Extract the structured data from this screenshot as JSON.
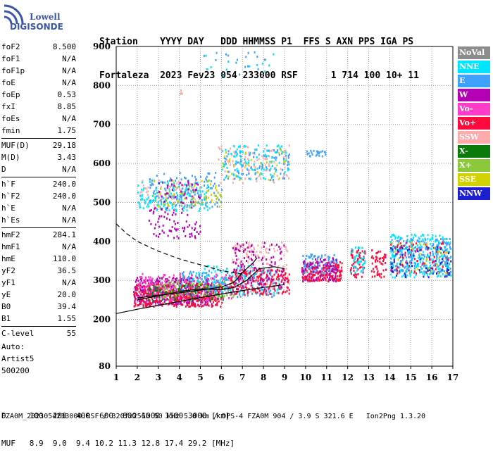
{
  "logo": {
    "line1": "Lowell",
    "line2": "DIGISONDE"
  },
  "header": {
    "labels": "Station    YYYY DAY   DDD HHMMSS P1  FFS S AXN PPS IGA PS",
    "values": "Fortaleza  2023 Fev23 054 233000 RSF      1 714 100 10+ 11"
  },
  "params": [
    {
      "groups": [
        {
          "name": "foF2",
          "value": "8.500"
        },
        {
          "name": "foF1",
          "value": "N/A"
        },
        {
          "name": "foF1p",
          "value": "N/A"
        },
        {
          "name": "foE",
          "value": "N/A"
        },
        {
          "name": "foEp",
          "value": "0.53"
        },
        {
          "name": "fxI",
          "value": "8.85"
        },
        {
          "name": "foEs",
          "value": "N/A"
        },
        {
          "name": "fmin",
          "value": "1.75"
        }
      ]
    },
    {
      "groups": [
        {
          "name": "MUF(D)",
          "value": "29.18"
        },
        {
          "name": "M(D)",
          "value": "3.43"
        },
        {
          "name": "D",
          "value": "N/A"
        }
      ]
    },
    {
      "groups": [
        {
          "name": "h`F",
          "value": "240.0"
        },
        {
          "name": "h`F2",
          "value": "240.0"
        },
        {
          "name": "h`E",
          "value": "N/A"
        },
        {
          "name": "h`Es",
          "value": "N/A"
        }
      ]
    },
    {
      "groups": [
        {
          "name": "hmF2",
          "value": "284.1"
        },
        {
          "name": "hmF1",
          "value": "N/A"
        },
        {
          "name": "hmE",
          "value": "110.0"
        },
        {
          "name": "yF2",
          "value": "36.5"
        },
        {
          "name": "yF1",
          "value": "N/A"
        },
        {
          "name": "yE",
          "value": "20.0"
        },
        {
          "name": "B0",
          "value": "39.4"
        },
        {
          "name": "B1",
          "value": "1.55"
        }
      ]
    },
    {
      "groups": [
        {
          "name": "C-level",
          "value": "55"
        }
      ]
    }
  ],
  "auto": {
    "line1": "Auto:",
    "line2": "Artist5",
    "line3": "500200"
  },
  "legend": [
    {
      "label": "NoVal",
      "color": "#8c8c8c"
    },
    {
      "label": "NNE",
      "color": "#00e5ff"
    },
    {
      "label": "E",
      "color": "#3ea0ff"
    },
    {
      "label": "W",
      "color": "#b400b4"
    },
    {
      "label": "Vo-",
      "color": "#ff3cc8"
    },
    {
      "label": "Vo+",
      "color": "#ff0a3c"
    },
    {
      "label": "SSW",
      "color": "#ffaaaa"
    },
    {
      "label": "X-",
      "color": "#0a7a0a"
    },
    {
      "label": "X+",
      "color": "#8cc83c"
    },
    {
      "label": "SSE",
      "color": "#d2d200"
    },
    {
      "label": "NNW",
      "color": "#1e1ed2"
    }
  ],
  "footer": {
    "d_row": "D     100  200  400  600  800 1000 1500 3000 [km]",
    "muf_row": "MUF   8.9  9.0  9.4 10.2 11.3 12.8 17.4 29.2 [MHz]",
    "file_line": "FZA0M_2023054233000.RSF / 320fx256h 50 kHz 5.0 km / DPS-4 FZA0M 904 / 3.9 S 321.6 E   Ion2Png 1.3.20"
  },
  "chart_data": {
    "type": "scatter",
    "xlim": [
      1,
      17
    ],
    "ylim": [
      80,
      900
    ],
    "x_ticks": [
      "1",
      "2",
      "3",
      "4",
      "5",
      "6",
      "7",
      "8",
      "9",
      "10",
      "11",
      "12",
      "13",
      "14",
      "15",
      "16",
      "17"
    ],
    "y_ticks": [
      "80",
      "200",
      "300",
      "400",
      "500",
      "600",
      "700",
      "800",
      "900"
    ],
    "grid": true,
    "clusters": [
      {
        "series": "W",
        "x": [
          1.8,
          5.6
        ],
        "y": [
          240,
          310
        ],
        "n": 420
      },
      {
        "series": "Vo+",
        "x": [
          1.8,
          6.0
        ],
        "y": [
          235,
          295
        ],
        "n": 380
      },
      {
        "series": "Vo-",
        "x": [
          2.0,
          6.5
        ],
        "y": [
          250,
          320
        ],
        "n": 220
      },
      {
        "series": "X-",
        "x": [
          2.5,
          6.2
        ],
        "y": [
          250,
          290
        ],
        "n": 100
      },
      {
        "series": "X+",
        "x": [
          3.0,
          6.6
        ],
        "y": [
          260,
          300
        ],
        "n": 90
      },
      {
        "series": "E",
        "x": [
          4.0,
          8.5
        ],
        "y": [
          260,
          330
        ],
        "n": 160
      },
      {
        "series": "NNE",
        "x": [
          4.5,
          8.8
        ],
        "y": [
          270,
          340
        ],
        "n": 120
      },
      {
        "series": "SSW",
        "x": [
          6.5,
          9.2
        ],
        "y": [
          270,
          400
        ],
        "n": 160
      },
      {
        "series": "Vo+",
        "x": [
          6.3,
          9.2
        ],
        "y": [
          265,
          330
        ],
        "n": 180
      },
      {
        "series": "W",
        "x": [
          6.5,
          9.0
        ],
        "y": [
          280,
          400
        ],
        "n": 120
      },
      {
        "series": "Vo+",
        "x": [
          9.8,
          11.7
        ],
        "y": [
          300,
          350
        ],
        "n": 220
      },
      {
        "series": "E",
        "x": [
          9.8,
          11.5
        ],
        "y": [
          320,
          370
        ],
        "n": 90
      },
      {
        "series": "W",
        "x": [
          9.8,
          11.5
        ],
        "y": [
          300,
          360
        ],
        "n": 80
      },
      {
        "series": "Vo+",
        "x": [
          12.1,
          12.8
        ],
        "y": [
          310,
          380
        ],
        "n": 60
      },
      {
        "series": "NNE",
        "x": [
          12.1,
          12.8
        ],
        "y": [
          320,
          390
        ],
        "n": 40
      },
      {
        "series": "Vo+",
        "x": [
          13.1,
          13.8
        ],
        "y": [
          310,
          380
        ],
        "n": 50
      },
      {
        "series": "NNE",
        "x": [
          14.0,
          16.9
        ],
        "y": [
          310,
          420
        ],
        "n": 260
      },
      {
        "series": "E",
        "x": [
          14.0,
          16.9
        ],
        "y": [
          320,
          410
        ],
        "n": 200
      },
      {
        "series": "NNW",
        "x": [
          14.0,
          16.9
        ],
        "y": [
          310,
          390
        ],
        "n": 70
      },
      {
        "series": "Vo+",
        "x": [
          14.0,
          16.9
        ],
        "y": [
          320,
          400
        ],
        "n": 60
      },
      {
        "series": "SSE",
        "x": [
          14.0,
          16.9
        ],
        "y": [
          320,
          400
        ],
        "n": 30
      },
      {
        "series": "W",
        "x": [
          2.5,
          5.0
        ],
        "y": [
          410,
          490
        ],
        "n": 80
      },
      {
        "series": "SSW",
        "x": [
          2.0,
          5.0
        ],
        "y": [
          490,
          560
        ],
        "n": 70
      },
      {
        "series": "NNE",
        "x": [
          2.0,
          5.5
        ],
        "y": [
          480,
          560
        ],
        "n": 140
      },
      {
        "series": "E",
        "x": [
          2.5,
          6.0
        ],
        "y": [
          490,
          580
        ],
        "n": 120
      },
      {
        "series": "SSE",
        "x": [
          2.5,
          6.0
        ],
        "y": [
          490,
          560
        ],
        "n": 40
      },
      {
        "series": "X+",
        "x": [
          3.0,
          6.0
        ],
        "y": [
          490,
          560
        ],
        "n": 40
      },
      {
        "series": "W",
        "x": [
          3.0,
          5.0
        ],
        "y": [
          500,
          560
        ],
        "n": 40
      },
      {
        "series": "SSW",
        "x": [
          5.8,
          9.2
        ],
        "y": [
          550,
          650
        ],
        "n": 110
      },
      {
        "series": "NNE",
        "x": [
          6.0,
          9.2
        ],
        "y": [
          560,
          650
        ],
        "n": 100
      },
      {
        "series": "E",
        "x": [
          6.0,
          9.2
        ],
        "y": [
          560,
          640
        ],
        "n": 80
      },
      {
        "series": "SSE",
        "x": [
          6.0,
          9.0
        ],
        "y": [
          560,
          640
        ],
        "n": 30
      },
      {
        "series": "E",
        "x": [
          10.0,
          11.2
        ],
        "y": [
          620,
          635
        ],
        "n": 25
      },
      {
        "series": "E",
        "x": [
          5.0,
          8.5
        ],
        "y": [
          820,
          890
        ],
        "n": 18
      },
      {
        "series": "NNE",
        "x": [
          5.0,
          8.5
        ],
        "y": [
          820,
          890
        ],
        "n": 12
      },
      {
        "series": "SSW",
        "x": [
          4.0,
          4.1
        ],
        "y": [
          770,
          790
        ],
        "n": 4
      }
    ],
    "curves": [
      {
        "style": "solid",
        "x": [
          1.0,
          2.0,
          3.0,
          4.0,
          5.0,
          6.0,
          7.0,
          8.0,
          9.0
        ],
        "y": [
          215,
          226,
          236,
          246,
          256,
          265,
          274,
          282,
          289
        ]
      },
      {
        "style": "dashed",
        "x": [
          1.0,
          1.5,
          2.0,
          3.0,
          4.0,
          5.0,
          6.0,
          7.0
        ],
        "y": [
          445,
          420,
          400,
          375,
          355,
          340,
          325,
          316
        ]
      },
      {
        "style": "solid",
        "x": [
          2.0,
          3.0,
          4.0,
          5.0,
          6.0,
          6.6,
          7.0,
          7.5,
          7.7
        ],
        "y": [
          255,
          262,
          268,
          275,
          283,
          295,
          320,
          345,
          358
        ]
      },
      {
        "style": "solid",
        "x": [
          2.0,
          2.8,
          3.5,
          4.0,
          5.0,
          6.0,
          6.6,
          7.2,
          7.8,
          8.5,
          9.0
        ],
        "y": [
          250,
          258,
          265,
          272,
          278,
          276,
          282,
          300,
          330,
          335,
          330
        ]
      }
    ]
  }
}
